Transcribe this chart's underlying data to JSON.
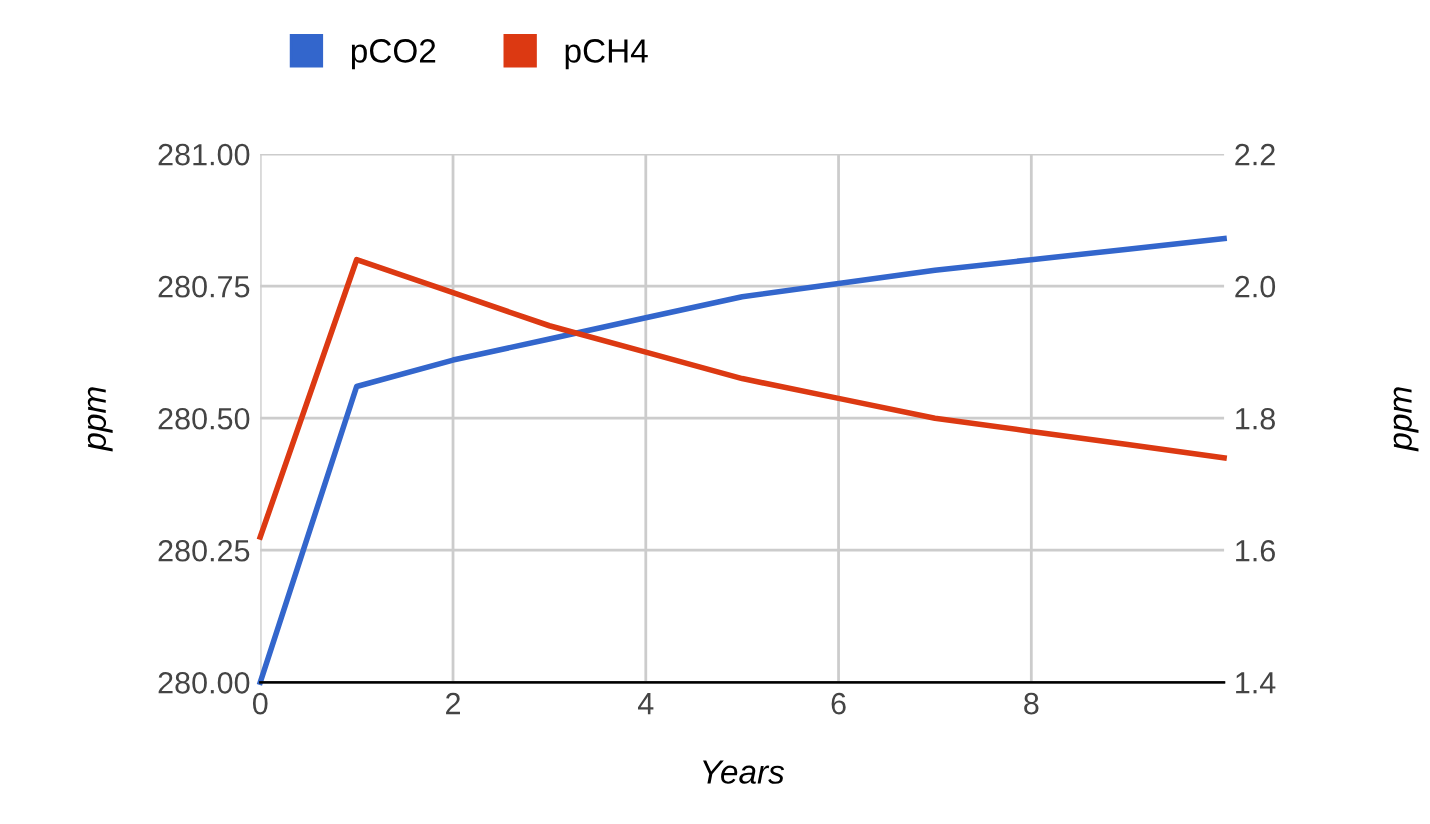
{
  "chart_data": {
    "type": "line",
    "xlabel": "Years",
    "ylabel": "ppm",
    "y2label": "ppm",
    "x": [
      0,
      1,
      2,
      3,
      4,
      5,
      6,
      7,
      8,
      9,
      10
    ],
    "series": [
      {
        "name": "pCO2",
        "color": "#3366cc",
        "values": [
          280.0,
          280.56,
          280.61,
          280.65,
          280.69,
          280.73,
          280.755,
          280.78,
          280.8,
          280.82,
          280.84
        ]
      },
      {
        "name": "pCH4",
        "color": "#dc3912",
        "axis": "y2",
        "values": [
          1.62,
          2.04,
          1.99,
          1.94,
          1.9,
          1.86,
          1.83,
          1.8,
          1.78,
          1.76,
          1.74
        ]
      }
    ],
    "xlim": [
      0,
      10
    ],
    "xticks": [
      0,
      2,
      4,
      6,
      8
    ],
    "ylim": [
      280.0,
      281.0
    ],
    "yticks": [
      {
        "value": 280.0,
        "label": "280.00"
      },
      {
        "value": 280.25,
        "label": "280.25"
      },
      {
        "value": 280.5,
        "label": "280.50"
      },
      {
        "value": 280.75,
        "label": "280.75"
      },
      {
        "value": 281.0,
        "label": "281.00"
      }
    ],
    "y2lim": [
      1.4,
      2.2
    ],
    "y2ticks": [
      1.4,
      1.6,
      1.8,
      {
        "value": 2.0,
        "label": "2.0"
      },
      2.2
    ],
    "grid": true,
    "legend": "top left",
    "marker": "none",
    "line_style": "solid"
  }
}
